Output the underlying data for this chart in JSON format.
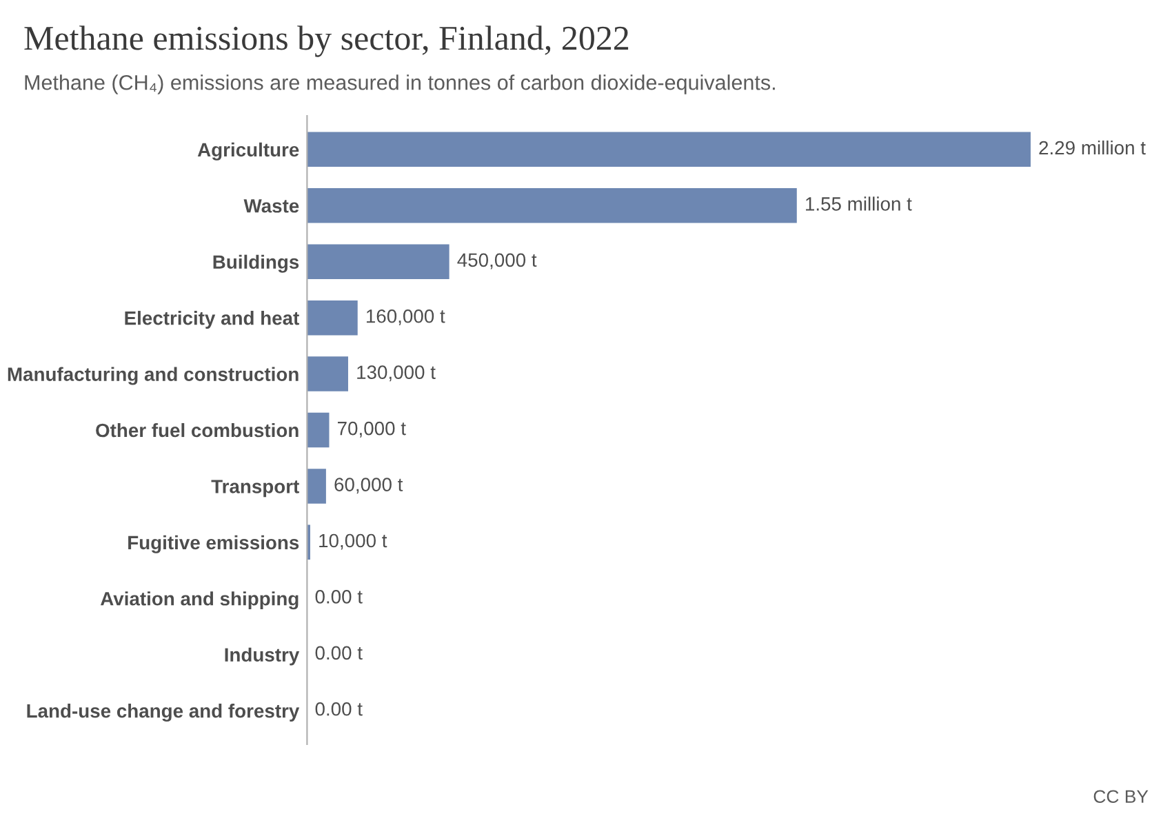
{
  "chart_data": {
    "type": "bar",
    "orientation": "horizontal",
    "title": "Methane emissions by sector, Finland, 2022",
    "subtitle": "Methane (CH₄) emissions are measured in tonnes of carbon dioxide-equivalents.",
    "categories": [
      "Agriculture",
      "Waste",
      "Buildings",
      "Electricity and heat",
      "Manufacturing and construction",
      "Other fuel combustion",
      "Transport",
      "Fugitive emissions",
      "Aviation and shipping",
      "Industry",
      "Land-use change and forestry"
    ],
    "values": [
      2290000,
      1550000,
      450000,
      160000,
      130000,
      70000,
      60000,
      10000,
      0,
      0,
      0
    ],
    "value_labels": [
      "2.29 million t",
      "1.55 million t",
      "450,000 t",
      "160,000 t",
      "130,000 t",
      "70,000 t",
      "60,000 t",
      "10,000 t",
      "0.00 t",
      "0.00 t",
      "0.00 t"
    ],
    "color": "#6d87b2",
    "annotations": [
      "CC BY"
    ]
  }
}
